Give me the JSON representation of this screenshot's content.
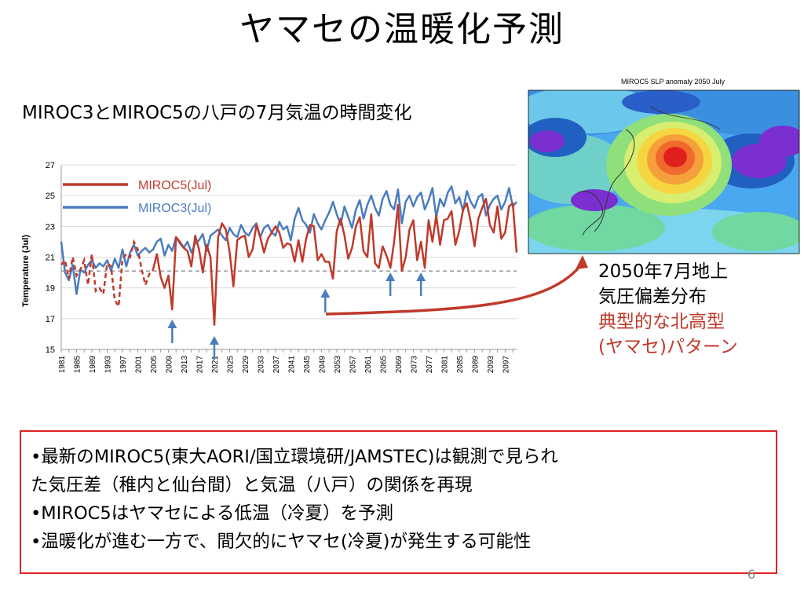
{
  "slide": {
    "title": "ヤマセの温暖化予測",
    "subtitle": "MIROC3とMIROC5の八戸の7月気温の時間変化",
    "page_number": "6"
  },
  "map": {
    "title": "MIROC5  SLP  anomaly  2050  July",
    "caption_line1": "2050年7月地上",
    "caption_line2": "気圧偏差分布",
    "caption_red_line1": "典型的な北高型",
    "caption_red_line2": "(ヤマセ)パターン"
  },
  "bullets": [
    "•最新のMIROC5(東大AORI/国立環境研/JAMSTEC)は観測で見られ",
    "た気圧差（稚内と仙台間）と気温（八戸）の関係を再現",
    "•MIROC5はヤマセによる低温（冷夏）を予測",
    "•温暖化が進む一方で、間欠的にヤマセ(冷夏)が発生する可能性"
  ],
  "colors": {
    "miroc5": "#c0392b",
    "miroc3": "#4a7cc0",
    "arrow": "#4a7cc0",
    "box_border": "#dd2222"
  },
  "chart_data": {
    "type": "line",
    "ylabel": "Temperature (Jul)",
    "xlabel": "",
    "ylim": [
      15,
      27
    ],
    "yticks": [
      15,
      17,
      19,
      21,
      23,
      25,
      27
    ],
    "xlim": [
      1981,
      2100
    ],
    "xticks": [
      "1981",
      "1985",
      "1989",
      "1993",
      "1997",
      "2001",
      "2005",
      "2009",
      "2013",
      "2017",
      "2021",
      "2025",
      "2029",
      "2033",
      "2037",
      "2041",
      "2045",
      "2049",
      "2053",
      "2057",
      "2061",
      "2065",
      "2069",
      "2073",
      "2077",
      "2081",
      "2085",
      "2089",
      "2093",
      "2097"
    ],
    "reference_line": 20.1,
    "legend": [
      "MIROC5(Jul)",
      "MIROC3(Jul)"
    ],
    "legend_position": "top-left",
    "highlighted_years": [
      2010,
      2021,
      2050,
      2067,
      2075
    ],
    "series": [
      {
        "name": "MIROC5(Jul)",
        "x_start": 1981,
        "dashed_until": 2005,
        "values": [
          20.5,
          20.8,
          19.6,
          21.0,
          19.8,
          20.2,
          20.8,
          19.2,
          21.2,
          18.8,
          19.0,
          18.6,
          20.6,
          20.4,
          18.2,
          17.8,
          20.9,
          21.2,
          21.0,
          22.0,
          21.5,
          20.2,
          19.2,
          19.9,
          20.2,
          21.2,
          19.7,
          19.0,
          19.8,
          17.6,
          22.3,
          22.0,
          21.6,
          21.4,
          20.4,
          22.4,
          21.5,
          20.0,
          21.8,
          21.0,
          16.6,
          22.3,
          23.2,
          22.8,
          21.3,
          19.1,
          22.1,
          22.3,
          22.4,
          21.0,
          21.5,
          23.1,
          22.3,
          21.3,
          22.2,
          22.6,
          23.0,
          22.6,
          21.6,
          21.9,
          21.8,
          20.7,
          22.1,
          20.7,
          22.2,
          23.1,
          23.0,
          20.8,
          21.2,
          20.7,
          20.7,
          19.6,
          22.7,
          23.5,
          22.4,
          20.9,
          21.6,
          23.0,
          23.6,
          21.4,
          21.0,
          23.8,
          20.6,
          20.3,
          21.7,
          21.1,
          20.3,
          22.0,
          24.4,
          20.1,
          21.0,
          22.8,
          23.4,
          20.8,
          22.0,
          20.3,
          23.4,
          22.0,
          23.7,
          21.8,
          23.4,
          23.5,
          24.0,
          21.8,
          22.7,
          24.1,
          24.5,
          23.3,
          21.7,
          23.5,
          24.2,
          24.8,
          23.1,
          22.6,
          24.3,
          22.2,
          22.6,
          24.3,
          24.5,
          21.3
        ]
      },
      {
        "name": "MIROC3(Jul)",
        "x_start": 1981,
        "values": [
          22.0,
          20.0,
          19.5,
          20.5,
          18.6,
          20.2,
          20.0,
          20.5,
          20.8,
          20.3,
          20.6,
          20.4,
          20.8,
          20.1,
          20.9,
          20.3,
          21.5,
          20.4,
          21.3,
          21.8,
          21.1,
          21.4,
          21.6,
          21.3,
          21.5,
          22.0,
          22.2,
          21.1,
          21.8,
          21.4,
          22.3,
          21.9,
          21.6,
          22.0,
          21.3,
          21.9,
          22.1,
          22.5,
          21.4,
          22.4,
          22.6,
          22.8,
          22.4,
          22.1,
          22.9,
          22.5,
          22.3,
          23.1,
          22.6,
          22.4,
          22.9,
          23.2,
          22.3,
          22.9,
          23.1,
          22.6,
          22.4,
          23.3,
          22.8,
          23.0,
          22.1,
          23.5,
          24.2,
          23.4,
          23.1,
          22.6,
          23.8,
          23.2,
          22.8,
          23.4,
          23.9,
          24.6,
          23.8,
          23.1,
          24.3,
          23.6,
          22.9,
          24.1,
          24.7,
          23.5,
          24.4,
          25.0,
          24.2,
          23.7,
          24.8,
          25.3,
          24.4,
          24.1,
          25.4,
          23.2,
          24.6,
          25.0,
          24.3,
          24.9,
          25.2,
          24.1,
          24.7,
          25.5,
          23.6,
          24.8,
          24.3,
          25.2,
          25.6,
          24.5,
          24.9,
          24.0,
          25.3,
          24.6,
          24.2,
          24.9,
          25.1,
          23.7,
          24.4,
          24.8,
          25.0,
          24.1,
          24.6,
          25.5,
          24.3,
          24.6
        ]
      }
    ]
  }
}
